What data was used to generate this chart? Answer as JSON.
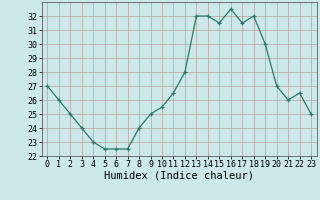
{
  "x": [
    0,
    1,
    2,
    3,
    4,
    5,
    6,
    7,
    8,
    9,
    10,
    11,
    12,
    13,
    14,
    15,
    16,
    17,
    18,
    19,
    20,
    21,
    22,
    23
  ],
  "y": [
    27,
    26,
    25,
    24,
    23,
    22.5,
    22.5,
    22.5,
    24,
    25,
    25.5,
    26.5,
    28,
    32,
    32,
    31.5,
    32.5,
    31.5,
    32,
    30,
    27,
    26,
    26.5,
    25
  ],
  "xlabel": "Humidex (Indice chaleur)",
  "xlim": [
    -0.5,
    23.5
  ],
  "ylim": [
    22,
    33
  ],
  "yticks": [
    22,
    23,
    24,
    25,
    26,
    27,
    28,
    29,
    30,
    31,
    32
  ],
  "xticks": [
    0,
    1,
    2,
    3,
    4,
    5,
    6,
    7,
    8,
    9,
    10,
    11,
    12,
    13,
    14,
    15,
    16,
    17,
    18,
    19,
    20,
    21,
    22,
    23
  ],
  "line_color": "#2a7a6a",
  "marker": "+",
  "bg_color": "#cce8e8",
  "grid_major_color": "#b8a0a0",
  "grid_minor_color": "#d4b8b8",
  "tick_label_fontsize": 6,
  "xlabel_fontsize": 7.5,
  "marker_size": 3.5,
  "line_width": 0.9
}
